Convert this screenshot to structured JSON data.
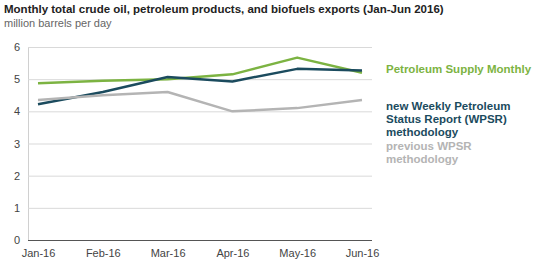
{
  "chart_data": {
    "type": "line",
    "title": "Monthly total crude oil, petroleum products, and biofuels exports (Jan-Jun 2016)",
    "subtitle": "million barrels per day",
    "categories": [
      "Jan-16",
      "Feb-16",
      "Mar-16",
      "Apr-16",
      "May-16",
      "Jun-16"
    ],
    "series": [
      {
        "name": "Petroleum Supply Monthly",
        "color": "#7cb342",
        "values": [
          4.87,
          4.95,
          5.0,
          5.15,
          5.67,
          5.2
        ]
      },
      {
        "name": "new Weekly Petroleum Status Report (WPSR) methodology",
        "color": "#1b4b5e",
        "values": [
          4.22,
          4.6,
          5.07,
          4.93,
          5.32,
          5.27
        ]
      },
      {
        "name": "previous WPSR methodology",
        "color": "#b4b4b4",
        "values": [
          4.35,
          4.5,
          4.6,
          4.0,
          4.1,
          4.35
        ]
      }
    ],
    "ylim": [
      0,
      6
    ],
    "yticks": [
      0,
      1,
      2,
      3,
      4,
      5,
      6
    ],
    "grid": true,
    "legend": "right"
  }
}
